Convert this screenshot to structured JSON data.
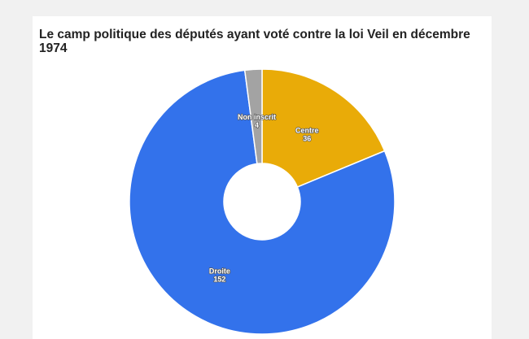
{
  "chart_data": {
    "type": "pie",
    "donut": true,
    "title": "Le camp politique des députés ayant voté contre la loi Veil en décembre 1974",
    "slices": [
      {
        "label": "Centre",
        "value": 36,
        "color": "#e9ab08"
      },
      {
        "label": "Droite",
        "value": 152,
        "color": "#3372eb"
      },
      {
        "label": "Non inscrit",
        "value": 4,
        "color": "#a3a3a3"
      }
    ],
    "legend": "none"
  }
}
